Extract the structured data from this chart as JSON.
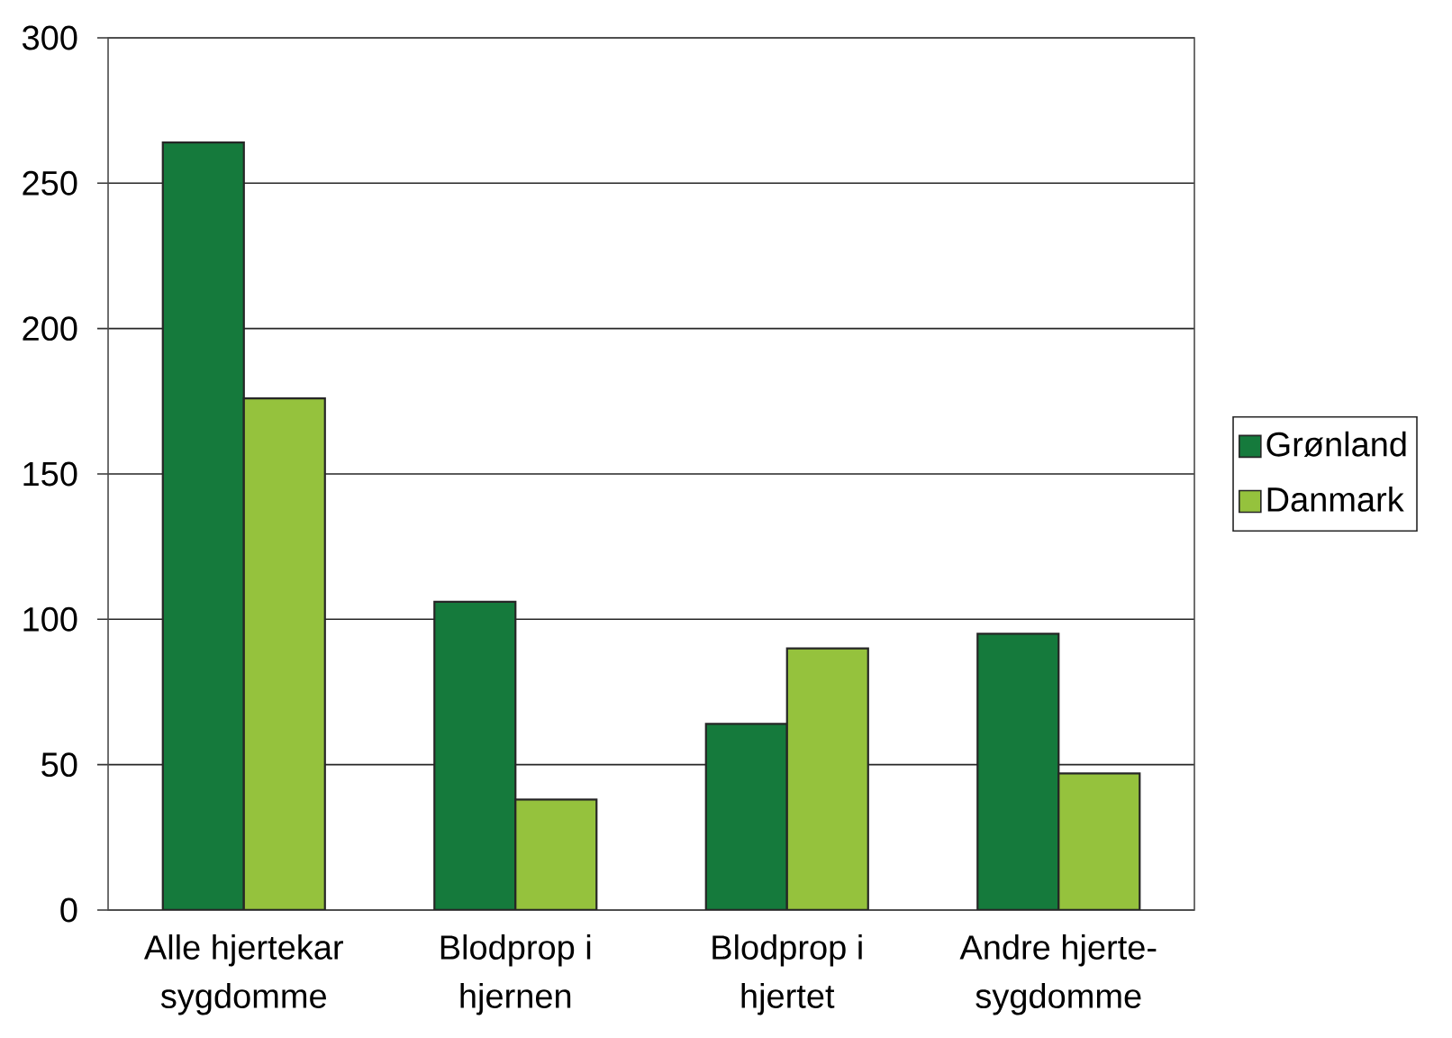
{
  "chart_data": {
    "type": "bar",
    "categories": [
      "Alle hjertekar sygdomme",
      "Blodprop i hjernen",
      "Blodprop i hjertet",
      "Andre hjerte-sygdomme"
    ],
    "series": [
      {
        "name": "Grønland",
        "color": "#157a3c",
        "values": [
          264,
          106,
          64,
          95
        ]
      },
      {
        "name": "Danmark",
        "color": "#95c23d",
        "values": [
          176,
          38,
          90,
          47
        ]
      }
    ],
    "ylim": [
      0,
      300
    ],
    "yticks": [
      0,
      50,
      100,
      150,
      200,
      250,
      300
    ],
    "grid": "y",
    "legend": "right"
  }
}
